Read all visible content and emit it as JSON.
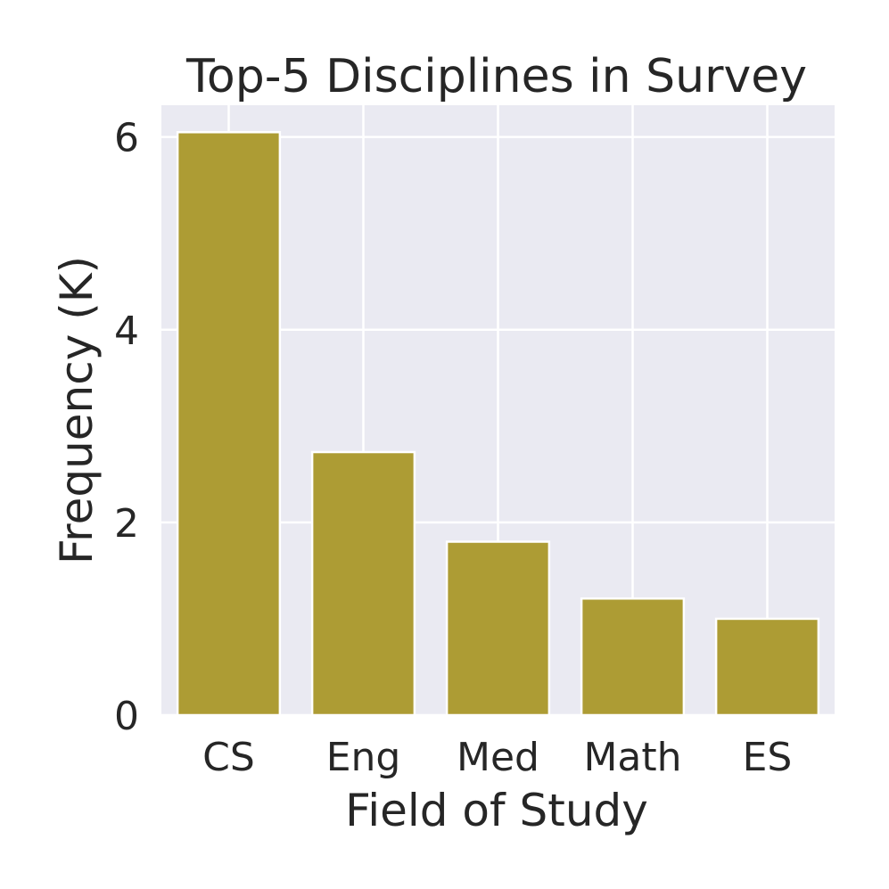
{
  "chart_data": {
    "type": "bar",
    "title": "Top-5 Disciplines in Survey",
    "xlabel": "Field of Study",
    "ylabel": "Frequency (K)",
    "categories": [
      "CS",
      "Eng",
      "Med",
      "Math",
      "ES"
    ],
    "values": [
      6.05,
      2.73,
      1.8,
      1.21,
      1.0
    ],
    "ylim": [
      0,
      6.33
    ],
    "yticks": [
      "0",
      "2",
      "4",
      "6"
    ],
    "grid": true,
    "legend": "none",
    "colors": {
      "bar": "#ad9c34",
      "plot_background": "#eaeaf2",
      "grid": "#ffffff",
      "text": "#262626"
    }
  }
}
